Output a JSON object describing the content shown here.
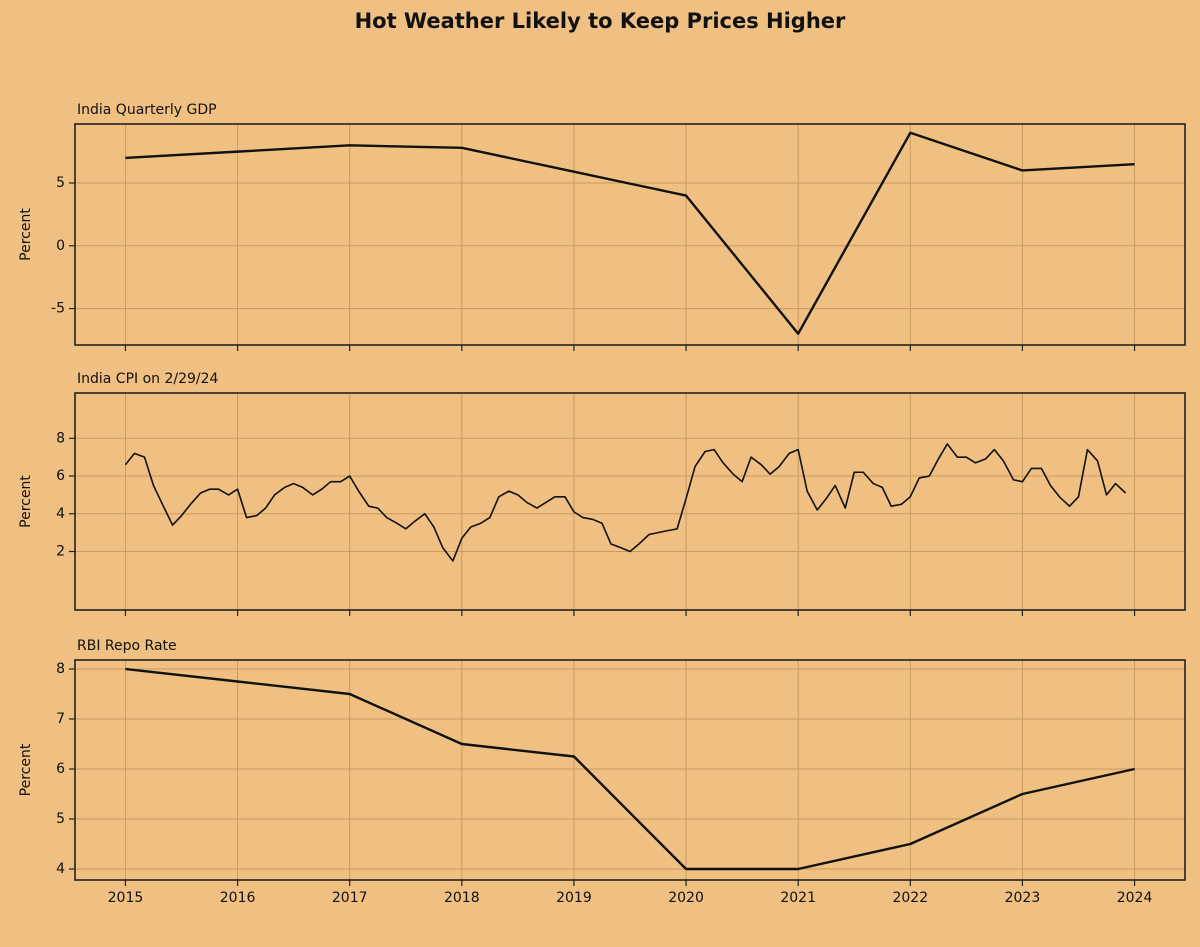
{
  "title": "Hot Weather Likely to Keep Prices Higher",
  "chart_data": [
    {
      "type": "line",
      "title": "India Quarterly GDP",
      "ylabel": "Percent",
      "color": "#111111",
      "grid": true,
      "x": [
        2015,
        2016,
        2017,
        2018,
        2019,
        2020,
        2021,
        2022,
        2023,
        2024
      ],
      "values": [
        7,
        7.5,
        8,
        7.8,
        5.9,
        4,
        -7,
        9,
        6,
        6.5
      ],
      "xlim": [
        2014.55,
        2024.45
      ],
      "xticks": [
        2015,
        2016,
        2017,
        2018,
        2019,
        2020,
        2021,
        2022,
        2023,
        2024
      ],
      "ylim": [
        -7.9,
        9.7
      ],
      "yticks": [
        -5,
        0,
        5
      ]
    },
    {
      "type": "line",
      "title": "India CPI on 2/29/24",
      "ylabel": "Percent",
      "color": "#111111",
      "grid": true,
      "x": [
        2015,
        2015.08,
        2015.17,
        2015.25,
        2015.33,
        2015.42,
        2015.5,
        2015.58,
        2015.67,
        2015.75,
        2015.83,
        2015.92,
        2016,
        2016.08,
        2016.17,
        2016.25,
        2016.33,
        2016.42,
        2016.5,
        2016.58,
        2016.67,
        2016.75,
        2016.83,
        2016.92,
        2017,
        2017.08,
        2017.17,
        2017.25,
        2017.33,
        2017.42,
        2017.5,
        2017.58,
        2017.67,
        2017.75,
        2017.83,
        2017.92,
        2018,
        2018.08,
        2018.17,
        2018.25,
        2018.33,
        2018.42,
        2018.5,
        2018.58,
        2018.67,
        2018.75,
        2018.83,
        2018.92,
        2019,
        2019.08,
        2019.17,
        2019.25,
        2019.33,
        2019.42,
        2019.5,
        2019.58,
        2019.67,
        2019.75,
        2019.83,
        2019.92,
        2020,
        2020.08,
        2020.17,
        2020.25,
        2020.33,
        2020.42,
        2020.5,
        2020.58,
        2020.67,
        2020.75,
        2020.83,
        2020.92,
        2021,
        2021.08,
        2021.17,
        2021.25,
        2021.33,
        2021.42,
        2021.5,
        2021.58,
        2021.67,
        2021.75,
        2021.83,
        2021.92,
        2022,
        2022.08,
        2022.17,
        2022.25,
        2022.33,
        2022.42,
        2022.5,
        2022.58,
        2022.67,
        2022.75,
        2022.83,
        2022.92,
        2023,
        2023.08,
        2023.17,
        2023.25,
        2023.33,
        2023.42,
        2023.5,
        2023.58,
        2023.67,
        2023.75,
        2023.83,
        2023.92
      ],
      "values": [
        6.6,
        7.2,
        7.0,
        5.5,
        4.5,
        3.4,
        3.9,
        4.5,
        5.1,
        5.3,
        5.3,
        5.0,
        5.3,
        3.8,
        3.9,
        4.3,
        5.0,
        5.4,
        5.6,
        5.4,
        5.0,
        5.3,
        5.7,
        5.7,
        6.0,
        5.2,
        4.4,
        4.3,
        3.8,
        3.5,
        3.2,
        3.6,
        4.0,
        3.3,
        2.2,
        1.5,
        2.7,
        3.3,
        3.5,
        3.8,
        4.9,
        5.2,
        5.0,
        4.6,
        4.3,
        4.6,
        4.9,
        4.9,
        4.1,
        3.8,
        3.7,
        3.5,
        2.4,
        2.2,
        2.0,
        2.4,
        2.9,
        3.0,
        3.1,
        3.2,
        4.8,
        6.5,
        7.3,
        7.4,
        6.7,
        6.1,
        5.7,
        7.0,
        6.6,
        6.1,
        6.5,
        7.2,
        7.4,
        5.2,
        4.2,
        4.8,
        5.5,
        4.3,
        6.2,
        6.2,
        5.6,
        5.4,
        4.4,
        4.5,
        4.9,
        5.9,
        6.0,
        6.9,
        7.7,
        7.0,
        7.0,
        6.7,
        6.9,
        7.4,
        6.8,
        5.8,
        5.7,
        6.4,
        6.4,
        5.5,
        4.9,
        4.4,
        4.9,
        7.4,
        6.8,
        5.0,
        5.6,
        5.1
      ],
      "xlim": [
        2014.55,
        2024.45
      ],
      "xticks": [
        2015,
        2016,
        2017,
        2018,
        2019,
        2020,
        2021,
        2022,
        2023,
        2024
      ],
      "ylim": [
        -1.1,
        10.4
      ],
      "yticks": [
        2,
        4,
        6,
        8
      ]
    },
    {
      "type": "line",
      "title": "RBI Repo Rate",
      "ylabel": "Percent",
      "color": "#111111",
      "grid": true,
      "x": [
        2015,
        2016,
        2017,
        2018,
        2019,
        2020,
        2021,
        2022,
        2023,
        2024
      ],
      "values": [
        8.0,
        7.75,
        7.5,
        6.5,
        6.25,
        4.0,
        4.0,
        4.5,
        5.5,
        6.0
      ],
      "xlim": [
        2014.55,
        2024.45
      ],
      "xticks": [
        2015,
        2016,
        2017,
        2018,
        2019,
        2020,
        2021,
        2022,
        2023,
        2024
      ],
      "ylim": [
        3.78,
        8.18
      ],
      "yticks": [
        4,
        5,
        6,
        7,
        8
      ]
    }
  ]
}
